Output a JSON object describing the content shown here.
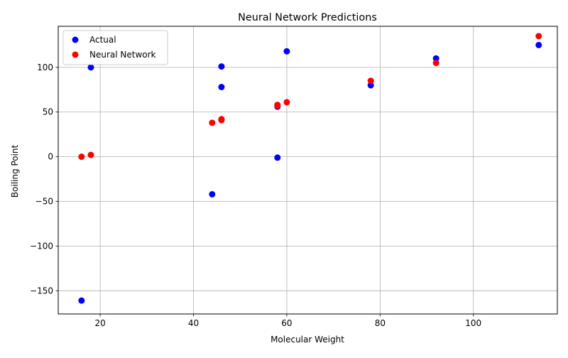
{
  "chart_data": {
    "type": "scatter",
    "title": "Neural Network Predictions",
    "xlabel": "Molecular Weight",
    "ylabel": "Boiling Point",
    "xlim": [
      11,
      118
    ],
    "ylim": [
      -176,
      146
    ],
    "xticks": [
      20,
      40,
      60,
      80,
      100
    ],
    "yticks": [
      -150,
      -100,
      -50,
      0,
      50,
      100
    ],
    "grid": true,
    "legend_position": "top-left",
    "series": [
      {
        "name": "Actual",
        "color": "#0000ff",
        "x": [
          16,
          18,
          44,
          46,
          46,
          58,
          58,
          60,
          78,
          92,
          114
        ],
        "y": [
          -161,
          100,
          -42,
          78,
          101,
          -1,
          56,
          118,
          80,
          110,
          125
        ]
      },
      {
        "name": "Neural Network",
        "color": "#ff0000",
        "x": [
          16,
          18,
          44,
          46,
          46,
          58,
          58,
          60,
          78,
          92,
          114
        ],
        "y": [
          0,
          2,
          38,
          41,
          42,
          57,
          58,
          61,
          85,
          105,
          135
        ]
      }
    ]
  }
}
